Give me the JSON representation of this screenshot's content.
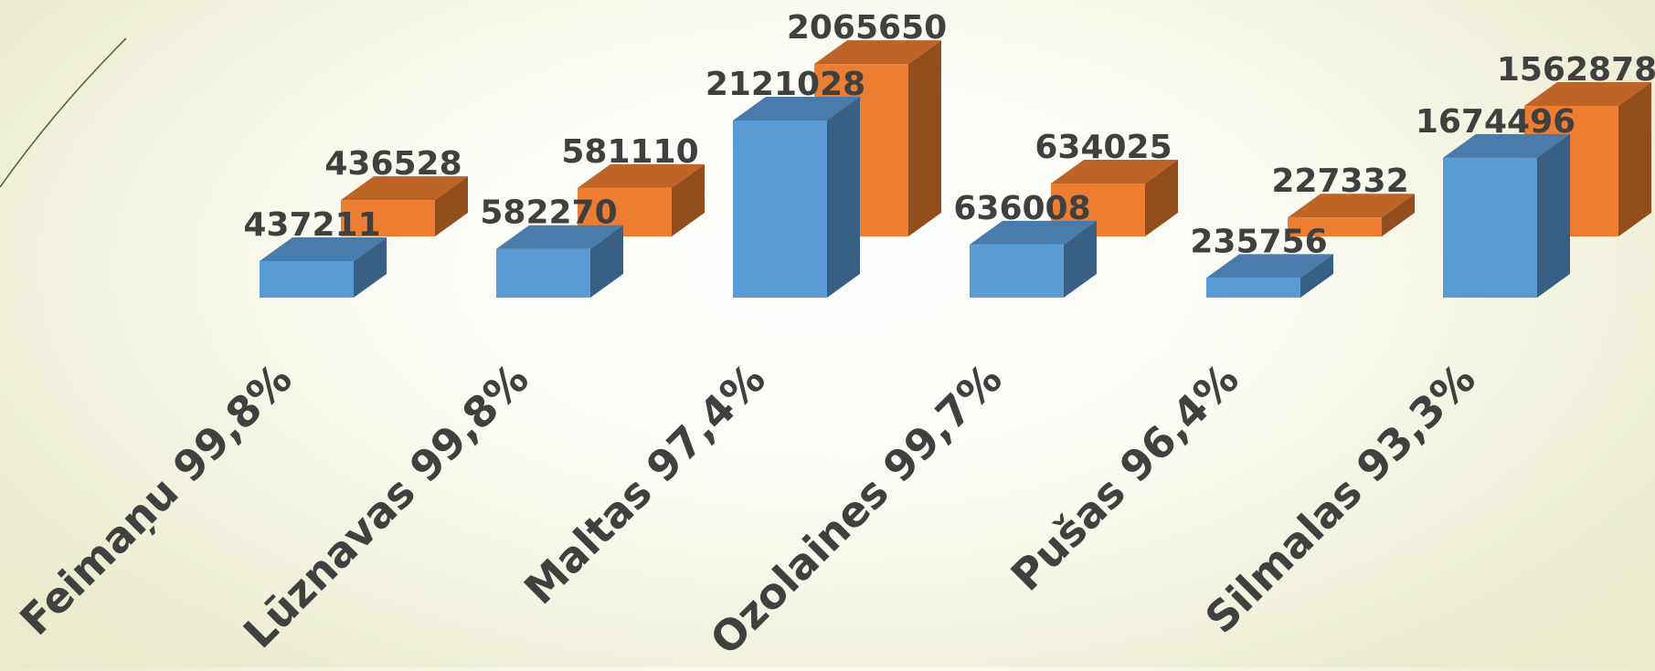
{
  "chart_data": {
    "type": "bar",
    "categories": [
      "Feimaņu 99,8%",
      "Lūznavas 99,8%",
      "Maltas 97,4%",
      "Ozolaines 99,7%",
      "Pušas 96,4%",
      "Silmalas 93,3%"
    ],
    "series": [
      {
        "values": [
          437211,
          582270,
          2121028,
          636008,
          235756,
          1674496
        ],
        "color": "#5b9bd5"
      },
      {
        "values": [
          436528,
          581110,
          2065650,
          634025,
          227332,
          1562878
        ],
        "color": "#ed7d31"
      }
    ],
    "data_labels": true,
    "grid": false,
    "legend": "none",
    "style": "3d-clustered-column",
    "colors": {
      "label_text": "#404040",
      "decoration_line": "#556b2f"
    }
  }
}
